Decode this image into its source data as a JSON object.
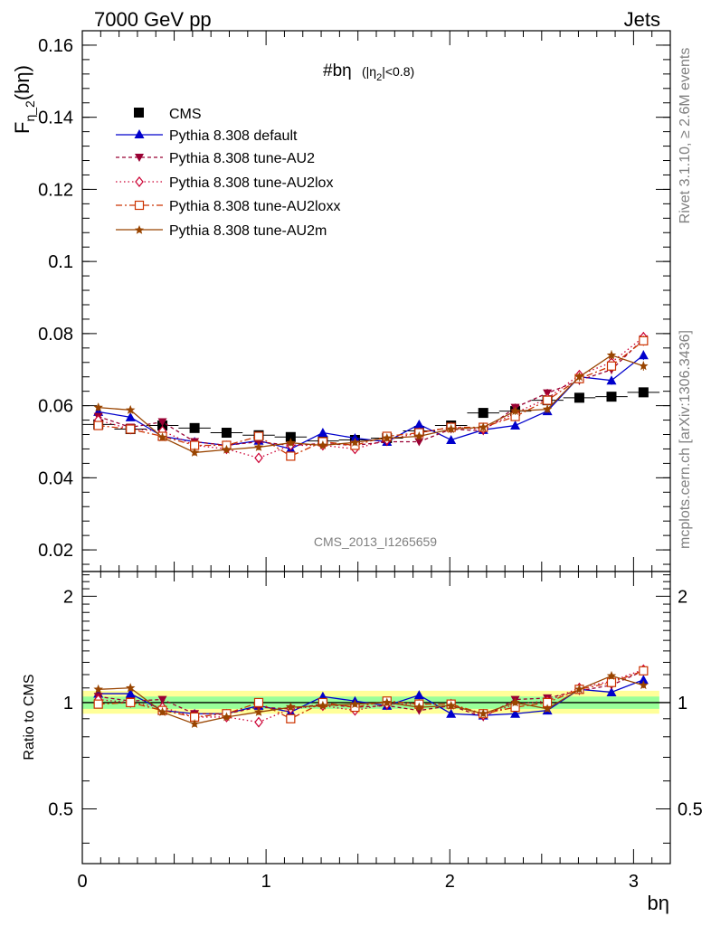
{
  "header": {
    "left": "7000 GeV pp",
    "right": "Jets"
  },
  "side_labels": {
    "rivet": "Rivet 3.1.10, ≥ 2.6M events",
    "mcplots": "mcplots.cern.ch [arXiv:1306.3436]"
  },
  "watermark": "CMS_2013_I1265659",
  "plot_title": {
    "main": "#bη",
    "sub": "(|η",
    "sub_index": "2",
    "sub_end": "|<0.8)"
  },
  "chart_data": [
    {
      "type": "line",
      "ylabel": "F",
      "ylabel_sub": "η_2",
      "ylabel_tail": "(bη)",
      "xlim": [
        0,
        3.2
      ],
      "ylim": [
        0.014,
        0.164
      ],
      "yticks": [
        0.02,
        0.04,
        0.06,
        0.08,
        0.1,
        0.12,
        0.14,
        0.16
      ],
      "ytick_labels": [
        "0.02",
        "0.04",
        "0.06",
        "0.08",
        "0.1",
        "0.12",
        "0.14",
        "0.16"
      ],
      "x": [
        0.087,
        0.262,
        0.436,
        0.611,
        0.785,
        0.96,
        1.134,
        1.309,
        1.484,
        1.658,
        1.833,
        2.007,
        2.182,
        2.356,
        2.531,
        2.705,
        2.88,
        3.054
      ],
      "series": [
        {
          "name": "CMS",
          "color": "#000000",
          "marker": "square",
          "line": "none",
          "values": [
            0.0548,
            0.0535,
            0.0545,
            0.0538,
            0.0525,
            0.0518,
            0.0513,
            0.0502,
            0.0505,
            0.051,
            0.053,
            0.0545,
            0.058,
            0.0585,
            0.0615,
            0.0622,
            0.0625,
            0.0637
          ]
        },
        {
          "name": "Pythia 8.308 default",
          "color": "#0000cc",
          "marker": "triangle-up",
          "line": "solid",
          "values": [
            0.0583,
            0.0568,
            0.0515,
            0.05,
            0.049,
            0.0503,
            0.048,
            0.0525,
            0.051,
            0.05,
            0.0548,
            0.0505,
            0.0533,
            0.0545,
            0.0585,
            0.068,
            0.067,
            0.074
          ]
        },
        {
          "name": "Pythia 8.308 tune-AU2",
          "color": "#990033",
          "marker": "triangle-down",
          "line": "dashed",
          "values": [
            0.057,
            0.054,
            0.0555,
            0.05,
            0.049,
            0.05,
            0.049,
            0.0495,
            0.049,
            0.05,
            0.05,
            0.0535,
            0.053,
            0.0595,
            0.0635,
            0.067,
            0.07,
            0.0785
          ]
        },
        {
          "name": "Pythia 8.308 tune-AU2lox",
          "color": "#cc0033",
          "marker": "diamond",
          "line": "dotted",
          "values": [
            0.056,
            0.0535,
            0.053,
            0.049,
            0.048,
            0.0455,
            0.049,
            0.049,
            0.048,
            0.0505,
            0.0525,
            0.054,
            0.0535,
            0.058,
            0.062,
            0.0685,
            0.072,
            0.079
          ]
        },
        {
          "name": "Pythia 8.308 tune-AU2loxx",
          "color": "#cc3300",
          "marker": "square-open",
          "line": "dashdot",
          "values": [
            0.0545,
            0.0535,
            0.0515,
            0.049,
            0.049,
            0.0515,
            0.046,
            0.05,
            0.049,
            0.0515,
            0.0525,
            0.054,
            0.054,
            0.057,
            0.0615,
            0.0675,
            0.071,
            0.078
          ]
        },
        {
          "name": "Pythia 8.308 tune-AU2m",
          "color": "#994400",
          "marker": "star",
          "line": "solid",
          "values": [
            0.0595,
            0.0588,
            0.0512,
            0.047,
            0.0478,
            0.0485,
            0.0497,
            0.049,
            0.0498,
            0.051,
            0.0515,
            0.0535,
            0.054,
            0.0585,
            0.059,
            0.068,
            0.074,
            0.071
          ]
        }
      ]
    },
    {
      "type": "line",
      "ylabel": "Ratio to CMS",
      "xlabel": "bη",
      "xlim": [
        0,
        3.2
      ],
      "ylim": [
        0.35,
        2.35
      ],
      "ylog": true,
      "yticks": [
        0.5,
        1,
        2
      ],
      "ytick_labels": [
        "0.5",
        "1",
        "2"
      ],
      "xticks": [
        0,
        1,
        2,
        3
      ],
      "xtick_labels": [
        "0",
        "1",
        "2",
        "3"
      ],
      "band_outer": [
        0.93,
        1.08
      ],
      "band_inner": [
        0.96,
        1.04
      ],
      "x": [
        0.087,
        0.262,
        0.436,
        0.611,
        0.785,
        0.96,
        1.134,
        1.309,
        1.484,
        1.658,
        1.833,
        2.007,
        2.182,
        2.356,
        2.531,
        2.705,
        2.88,
        3.054
      ],
      "series": [
        {
          "name": "Pythia 8.308 default",
          "color": "#0000cc",
          "marker": "triangle-up",
          "line": "solid",
          "values": [
            1.06,
            1.06,
            0.95,
            0.93,
            0.93,
            0.98,
            0.94,
            1.04,
            1.01,
            0.98,
            1.05,
            0.93,
            0.92,
            0.93,
            0.95,
            1.09,
            1.07,
            1.16
          ]
        },
        {
          "name": "Pythia 8.308 tune-AU2",
          "color": "#990033",
          "marker": "triangle-down",
          "line": "dashed",
          "values": [
            1.04,
            1.01,
            1.02,
            0.93,
            0.93,
            0.97,
            0.96,
            0.99,
            0.97,
            0.98,
            0.95,
            0.98,
            0.91,
            1.02,
            1.03,
            1.08,
            1.12,
            1.23
          ]
        },
        {
          "name": "Pythia 8.308 tune-AU2lox",
          "color": "#cc0033",
          "marker": "diamond",
          "line": "dotted",
          "values": [
            1.02,
            1.0,
            0.97,
            0.91,
            0.91,
            0.88,
            0.96,
            0.98,
            0.95,
            0.99,
            0.99,
            0.99,
            0.92,
            0.99,
            1.01,
            1.1,
            1.15,
            1.24
          ]
        },
        {
          "name": "Pythia 8.308 tune-AU2loxx",
          "color": "#cc3300",
          "marker": "square-open",
          "line": "dashdot",
          "values": [
            0.99,
            1.0,
            0.95,
            0.91,
            0.93,
            1.0,
            0.9,
            1.0,
            0.97,
            1.01,
            0.99,
            0.99,
            0.93,
            0.97,
            1.0,
            1.09,
            1.14,
            1.23
          ]
        },
        {
          "name": "Pythia 8.308 tune-AU2m",
          "color": "#994400",
          "marker": "star",
          "line": "solid",
          "values": [
            1.09,
            1.1,
            0.94,
            0.87,
            0.91,
            0.94,
            0.97,
            0.98,
            0.99,
            1.0,
            0.97,
            0.98,
            0.93,
            1.0,
            0.96,
            1.09,
            1.19,
            1.12
          ]
        }
      ]
    }
  ]
}
